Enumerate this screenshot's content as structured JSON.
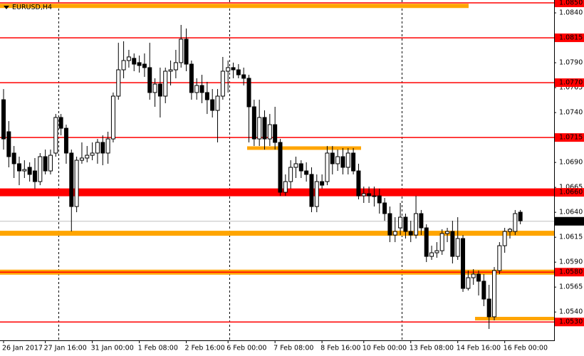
{
  "chart_data": {
    "type": "candlestick",
    "title": "EURUSD,H4",
    "categories": [
      "26 Jan 2017",
      null,
      null,
      null,
      null,
      null,
      null,
      null,
      "27 Jan 16:00",
      null,
      null,
      null,
      null,
      null,
      null,
      null,
      null,
      "31 Jan 00:00",
      null,
      null,
      null,
      null,
      null,
      null,
      null,
      null,
      "1 Feb 08:00",
      null,
      null,
      null,
      null,
      null,
      null,
      null,
      null,
      "2 Feb 16:00",
      null,
      null,
      null,
      null,
      null,
      null,
      null,
      "6 Feb 00:00",
      null,
      null,
      null,
      null,
      null,
      null,
      null,
      null,
      "7 Feb 08:00",
      null,
      null,
      null,
      null,
      null,
      null,
      null,
      null,
      "8 Feb 16:00",
      null,
      null,
      null,
      null,
      null,
      null,
      null,
      "10 Feb 00:00",
      null,
      null,
      null,
      null,
      null,
      null,
      null,
      null,
      "13 Feb 08:00",
      null,
      null,
      null,
      null,
      null,
      null,
      null,
      null,
      "14 Feb 16:00",
      null,
      null,
      null,
      null,
      null,
      null,
      null,
      null,
      "16 Feb 00:00",
      null,
      null,
      null
    ],
    "open": [
      1.07529,
      1.07208,
      1.06994,
      1.06887,
      1.06815,
      1.06851,
      1.06815,
      1.06708,
      1.06958,
      1.06815,
      1.06994,
      1.07351,
      1.07243,
      1.06994,
      1.06458,
      1.06922,
      1.06944,
      1.06972,
      1.06994,
      1.07101,
      1.06994,
      1.07136,
      1.07565,
      1.07829,
      1.07922,
      1.07944,
      1.07901,
      1.07886,
      1.07851,
      1.07601,
      1.07686,
      1.07565,
      1.07815,
      1.07829,
      1.07901,
      1.08136,
      1.07886,
      1.07601,
      1.07672,
      1.07601,
      1.07529,
      1.07422,
      1.07565,
      1.07815,
      1.07851,
      1.07829,
      1.07779,
      1.07744,
      1.07458,
      1.07136,
      1.07351,
      1.07136,
      1.07279,
      1.07101,
      1.06601,
      1.06708,
      1.06851,
      1.06887,
      1.06815,
      1.0678,
      1.06458,
      1.06708,
      1.06708,
      1.06994,
      1.06887,
      1.06958,
      1.06851,
      1.06994,
      1.06815,
      1.06565,
      1.06587,
      1.06565,
      1.06565,
      1.06494,
      1.06387,
      1.06172,
      1.06244,
      1.06351,
      1.06208,
      1.06172,
      1.06387,
      1.06244,
      1.05958,
      1.05994,
      1.06015,
      1.06187,
      1.06208,
      1.05958,
      1.06137,
      1.05637,
      1.05744,
      1.0578,
      1.05709,
      1.0553,
      1.05352,
      1.05816,
      1.06065,
      1.06208,
      1.06208,
      1.06401
    ],
    "high": [
      1.07636,
      1.07315,
      1.07065,
      1.06958,
      1.06922,
      1.06901,
      1.06944,
      1.06994,
      1.07029,
      1.07029,
      1.07386,
      1.07386,
      1.07279,
      1.07029,
      1.06958,
      1.07101,
      1.07065,
      1.07101,
      1.07136,
      1.07172,
      1.07208,
      1.07601,
      1.081,
      1.08115,
      1.08029,
      1.07993,
      1.07972,
      1.07993,
      1.081,
      1.07744,
      1.07851,
      1.07851,
      1.07922,
      1.08029,
      1.08279,
      1.08243,
      1.07922,
      1.07744,
      1.07779,
      1.07708,
      1.07636,
      1.07636,
      1.07958,
      1.07922,
      1.07901,
      1.07886,
      1.07851,
      1.07779,
      1.07529,
      1.07529,
      1.07422,
      1.07386,
      1.07458,
      1.07136,
      1.0678,
      1.06922,
      1.06958,
      1.06922,
      1.06901,
      1.06851,
      1.0678,
      1.0678,
      1.07065,
      1.07065,
      1.07029,
      1.07044,
      1.07044,
      1.07044,
      1.06887,
      1.06658,
      1.06658,
      1.06658,
      1.06637,
      1.06544,
      1.06458,
      1.06351,
      1.06494,
      1.06387,
      1.06315,
      1.06565,
      1.06423,
      1.0628,
      1.06065,
      1.06101,
      1.0623,
      1.06244,
      1.06315,
      1.06351,
      1.06172,
      1.05816,
      1.0583,
      1.05816,
      1.0578,
      1.05673,
      1.05851,
      1.06101,
      1.06244,
      1.06244,
      1.06423,
      1.06423
    ],
    "low": [
      1.07029,
      1.06851,
      1.06744,
      1.06672,
      1.06744,
      1.06708,
      1.06637,
      1.06672,
      1.0678,
      1.0678,
      1.06958,
      1.07172,
      1.06887,
      1.06208,
      1.06401,
      1.06887,
      1.06901,
      1.06922,
      1.06887,
      1.06872,
      1.06887,
      1.07101,
      1.07529,
      1.07744,
      1.07851,
      1.07815,
      1.07801,
      1.07758,
      1.07529,
      1.07458,
      1.07351,
      1.07494,
      1.07672,
      1.07744,
      1.07851,
      1.07815,
      1.07529,
      1.07529,
      1.07494,
      1.07386,
      1.07351,
      1.07101,
      1.07529,
      1.07601,
      1.07744,
      1.07744,
      1.07672,
      1.07101,
      1.07065,
      1.07065,
      1.07029,
      1.07065,
      1.07029,
      1.06565,
      1.06565,
      1.06637,
      1.06744,
      1.06744,
      1.06708,
      1.06401,
      1.06401,
      1.06637,
      1.06672,
      1.0678,
      1.06815,
      1.0678,
      1.0678,
      1.0678,
      1.0653,
      1.06494,
      1.06494,
      1.06458,
      1.06387,
      1.06315,
      1.06101,
      1.06101,
      1.06172,
      1.06137,
      1.06101,
      1.06137,
      1.06172,
      1.05901,
      1.05923,
      1.05944,
      1.05973,
      1.06101,
      1.05887,
      1.05923,
      1.05602,
      1.05616,
      1.05673,
      1.05566,
      1.05459,
      1.0523,
      1.05316,
      1.0578,
      1.05994,
      1.06137,
      1.06172,
      1.0628
    ],
    "close": [
      1.07136,
      1.06958,
      1.06887,
      1.06815,
      1.06829,
      1.0678,
      1.06708,
      1.06958,
      1.06815,
      1.06972,
      1.07351,
      1.07243,
      1.06994,
      1.06458,
      1.06922,
      1.06944,
      1.06972,
      1.06994,
      1.07101,
      1.06994,
      1.07136,
      1.07565,
      1.07829,
      1.07922,
      1.07958,
      1.07886,
      1.07872,
      1.07851,
      1.07601,
      1.07686,
      1.07565,
      1.07815,
      1.07829,
      1.07901,
      1.08136,
      1.07886,
      1.07601,
      1.07672,
      1.07601,
      1.07529,
      1.07422,
      1.07565,
      1.07815,
      1.07851,
      1.07829,
      1.07779,
      1.07744,
      1.07458,
      1.07136,
      1.07351,
      1.07136,
      1.07279,
      1.07101,
      1.06601,
      1.06708,
      1.06851,
      1.06887,
      1.06815,
      1.0678,
      1.06458,
      1.06708,
      1.06672,
      1.06994,
      1.06887,
      1.06958,
      1.06851,
      1.06994,
      1.06815,
      1.06565,
      1.06587,
      1.06565,
      1.06565,
      1.06494,
      1.06387,
      1.06172,
      1.06208,
      1.06351,
      1.06208,
      1.06172,
      1.06387,
      1.06244,
      1.05958,
      1.05994,
      1.06015,
      1.06187,
      1.06208,
      1.05958,
      1.06137,
      1.05637,
      1.05744,
      1.0578,
      1.05709,
      1.0553,
      1.05352,
      1.05816,
      1.06065,
      1.06208,
      1.0623,
      1.06387,
      1.06315
    ],
    "ylim": [
      1.05116,
      1.08529
    ],
    "yticks": [
      {
        "value": 1.084,
        "label": "1.0840"
      },
      {
        "value": 1.079,
        "label": "1.0790"
      },
      {
        "value": 1.0765,
        "label": "1.0765"
      },
      {
        "value": 1.074,
        "label": "1.0740"
      },
      {
        "value": 1.069,
        "label": "1.0690"
      },
      {
        "value": 1.0665,
        "label": "1.0665"
      },
      {
        "value": 1.064,
        "label": "1.0640"
      },
      {
        "value": 1.0615,
        "label": "1.0615"
      },
      {
        "value": 1.059,
        "label": "1.0590"
      },
      {
        "value": 1.0565,
        "label": "1.0565"
      },
      {
        "value": 1.054,
        "label": "1.0540"
      }
    ],
    "levels": [
      {
        "value": 1.0847,
        "color": "#ffa500"
      },
      {
        "value": 1.085,
        "label": "1.0850",
        "color": "#ff0000"
      },
      {
        "value": 1.0815,
        "label": "1.0815",
        "color": "#ff0000"
      },
      {
        "value": 1.077,
        "label": "1.0770",
        "color": "#ff0000"
      },
      {
        "value": 1.0715,
        "label": "1.0715",
        "color": "#ff0000"
      },
      {
        "value": 1.07044,
        "color": "#ffa500"
      },
      {
        "value": 1.066,
        "label": "1.0660",
        "color": "#ff0000"
      },
      {
        "value": 1.0619,
        "color": "#ffa500"
      },
      {
        "value": 1.058,
        "color": "#ffa500"
      },
      {
        "value": 1.058,
        "label": "1.0580",
        "color": "#ff0000"
      },
      {
        "value": 1.05334,
        "color": "#ffa500"
      },
      {
        "value": 1.053,
        "label": "1.0530",
        "color": "#ff0000"
      }
    ],
    "current_price": {
      "value": 1.0631,
      "label": "1.0631"
    },
    "bull_color": "#ffffff",
    "bear_color": "#000000"
  }
}
